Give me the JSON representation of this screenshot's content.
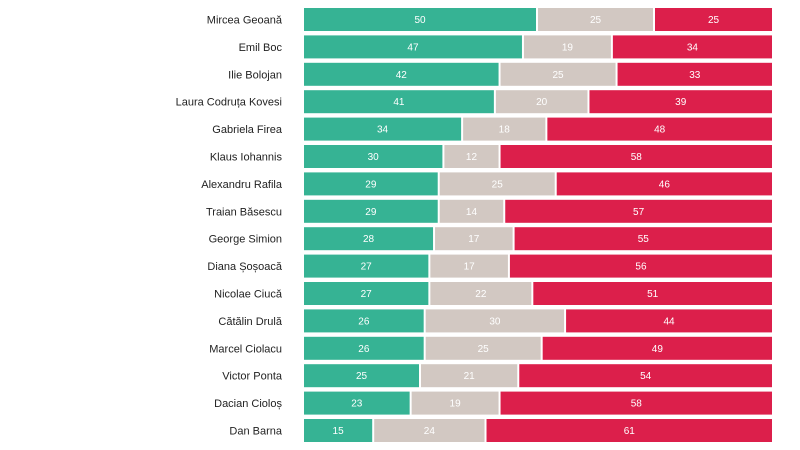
{
  "chart_data": {
    "type": "bar",
    "orientation": "horizontal",
    "stacked": true,
    "normalized_to": 100,
    "title": "",
    "xlabel": "",
    "ylabel": "",
    "legend": "none",
    "grid": false,
    "categories": [
      "Mircea Geoană",
      "Emil Boc",
      "Ilie Bolojan",
      "Laura Codruța Kovesi",
      "Gabriela Firea",
      "Klaus Iohannis",
      "Alexandru Rafila",
      "Traian Băsescu",
      "George Simion",
      "Diana Șoșoacă",
      "Nicolae Ciucă",
      "Cătălin Drulă",
      "Marcel Ciolacu",
      "Victor Ponta",
      "Dacian Cioloș",
      "Dan Barna"
    ],
    "series": [
      {
        "color": "#36b394",
        "values": [
          50,
          47,
          42,
          41,
          34,
          30,
          29,
          29,
          28,
          27,
          27,
          26,
          26,
          25,
          23,
          15
        ]
      },
      {
        "color": "#d2c8c2",
        "values": [
          25,
          19,
          25,
          20,
          18,
          12,
          25,
          14,
          17,
          17,
          22,
          30,
          25,
          21,
          19,
          24
        ]
      },
      {
        "color": "#dc1f4b",
        "values": [
          25,
          34,
          33,
          39,
          48,
          58,
          46,
          57,
          55,
          56,
          51,
          44,
          49,
          54,
          58,
          61
        ]
      }
    ]
  }
}
